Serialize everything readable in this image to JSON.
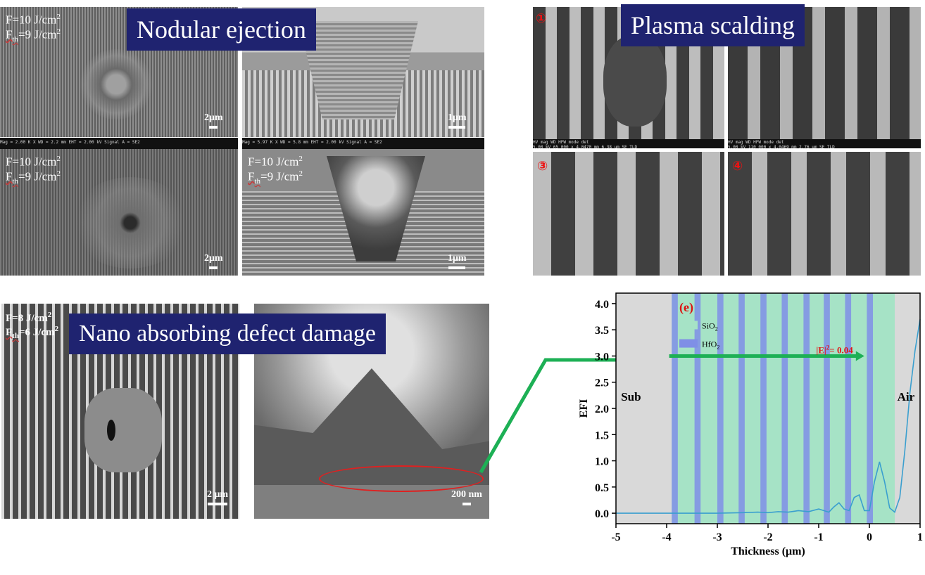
{
  "sections": {
    "nodular": "Nodular ejection",
    "plasma": "Plasma scalding",
    "nano": "Nano absorbing defect damage"
  },
  "fluence_labels": {
    "f10": "F=10 J/cm",
    "f8": "F=8 J/cm",
    "fth9": "=9 J/cm",
    "fth6": "=6 J/cm",
    "fprefix": "F",
    "fsub": "th",
    "sup": "2"
  },
  "scale_bars": {
    "s2um_a": "2μm",
    "s1um_a": "1μm",
    "s2um_b": "2μm",
    "s1um_b": "1μm",
    "s2um_c": "2 μm",
    "s200nm": "200 nm"
  },
  "plasma_panels": [
    "①",
    "③",
    "④"
  ],
  "sem_footer": {
    "a": "Mag = 2.00 K X   WD = 2.2 mm   EHT = 2.00 kV   Signal A = SE2",
    "b": "Mag = 5.97 K X   WD = 5.8 mm   EHT = 2.00 kV   Signal A = SE2",
    "c": "HV  mag  WD  HFW  mode  det",
    "d": "HV  mag  WD  HFW  mode  det",
    "e": "5.00 kV  65 000 x  4.0470 mm  6.38 μm  SE  TLD",
    "f": "5.00 kV  110 000 x  4.0469 mm  2.76 μm  SE  TLD"
  },
  "chart_data": {
    "type": "line",
    "panel_label": "(e)",
    "xlabel": "Thickness (μm)",
    "ylabel": "EFI",
    "xlim": [
      -5,
      1
    ],
    "ylim": [
      -0.2,
      4.2
    ],
    "xticks": [
      -5,
      -4,
      -3,
      -2,
      -1,
      0,
      1
    ],
    "yticks": [
      0.0,
      0.5,
      1.0,
      1.5,
      2.0,
      2.5,
      3.0,
      3.5,
      4.0
    ],
    "legend": [
      {
        "name": "SiO",
        "sub": "2",
        "color": "#a6e3c6"
      },
      {
        "name": "HfO",
        "sub": "2",
        "color": "#7f8fe6"
      }
    ],
    "region_labels": {
      "sub": "Sub",
      "air": "Air"
    },
    "annotation": {
      "text_main": "|E|",
      "text_sup": "2",
      "text_tail": "= 0.04",
      "x": -0.1,
      "y": 3.05,
      "arrow_from_x": -3.95
    },
    "regions": {
      "substrate": [
        -5,
        -3.9
      ],
      "coating": [
        -3.9,
        0.5
      ],
      "air": [
        0.5,
        1
      ]
    },
    "hfo2_layers": [
      -3.9,
      -3.45,
      -3.0,
      -2.58,
      -2.15,
      -1.73,
      -1.3,
      -0.9,
      -0.48,
      -0.05
    ],
    "hfo2_width": 0.12,
    "series": [
      {
        "name": "EFI",
        "color": "#3a9fcf",
        "x": [
          -5,
          -4,
          -3.5,
          -3,
          -2.5,
          -2.2,
          -2.0,
          -1.8,
          -1.6,
          -1.4,
          -1.2,
          -1.0,
          -0.9,
          -0.8,
          -0.7,
          -0.6,
          -0.5,
          -0.4,
          -0.3,
          -0.2,
          -0.1,
          0.0,
          0.1,
          0.2,
          0.3,
          0.4,
          0.5,
          0.6,
          0.7,
          0.8,
          0.9,
          1.0
        ],
        "y": [
          0,
          0,
          0.0,
          0.0,
          0.01,
          0.02,
          0.01,
          0.03,
          0.02,
          0.05,
          0.03,
          0.08,
          0.05,
          0.02,
          0.12,
          0.2,
          0.08,
          0.05,
          0.3,
          0.35,
          0.05,
          0.05,
          0.6,
          0.98,
          0.6,
          0.1,
          0.02,
          0.3,
          1.2,
          2.3,
          3.1,
          3.7
        ]
      }
    ]
  }
}
